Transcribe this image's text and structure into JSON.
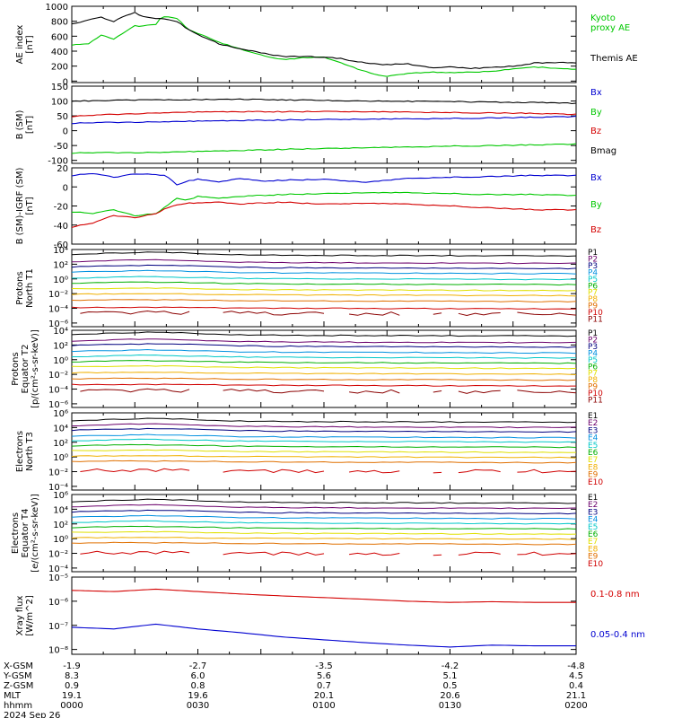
{
  "colors": {
    "black": "#000000",
    "red": "#d40000",
    "blue": "#0000d0",
    "green": "#00c800",
    "band": [
      "#000000",
      "#6b006b",
      "#00007f",
      "#0090e0",
      "#00c8c8",
      "#00b000",
      "#e0e000",
      "#f0b000",
      "#e07000",
      "#d00000",
      "#8b0000"
    ]
  },
  "chart_data": [
    {
      "type": "line",
      "panel": "ae",
      "ylabel": [
        "AE index",
        "[nT]"
      ],
      "ylim": [
        -20,
        1000
      ],
      "yticks": [
        {
          "v": 1000,
          "t": "1000"
        },
        {
          "v": 800,
          "t": "800"
        },
        {
          "v": 600,
          "t": "600"
        },
        {
          "v": 400,
          "t": "400"
        },
        {
          "v": 200,
          "t": "200"
        },
        {
          "v": 0,
          "t": "0"
        }
      ],
      "x": [
        0,
        8,
        14,
        20,
        25,
        30,
        33,
        40,
        43,
        50,
        55,
        60,
        70,
        80,
        90,
        100,
        110,
        120,
        128,
        135,
        145,
        150,
        160,
        170,
        180,
        190,
        200,
        210,
        220,
        230,
        240
      ],
      "series": [
        {
          "name": "Kyoto proxy AE",
          "color": "green",
          "values": [
            480,
            500,
            620,
            560,
            650,
            740,
            730,
            760,
            870,
            840,
            700,
            640,
            520,
            430,
            350,
            290,
            310,
            320,
            250,
            170,
            90,
            60,
            100,
            120,
            110,
            120,
            130,
            160,
            190,
            170,
            160
          ]
        },
        {
          "name": "Themis AE",
          "color": "black",
          "values": [
            760,
            820,
            850,
            800,
            870,
            920,
            860,
            840,
            830,
            800,
            700,
            620,
            500,
            430,
            380,
            330,
            330,
            320,
            300,
            260,
            230,
            220,
            230,
            180,
            190,
            170,
            180,
            200,
            240,
            250,
            240
          ]
        }
      ]
    },
    {
      "type": "line",
      "panel": "b_sm",
      "ylabel": [
        "B (SM)",
        "[nT]"
      ],
      "ylim": [
        -110,
        150
      ],
      "yticks": [
        {
          "v": 150,
          "t": "150"
        },
        {
          "v": 100,
          "t": "100"
        },
        {
          "v": 50,
          "t": "50"
        },
        {
          "v": 0,
          "t": "0"
        },
        {
          "v": -50,
          "t": "-50"
        },
        {
          "v": -100,
          "t": "-100"
        }
      ],
      "x": [
        0,
        20,
        40,
        60,
        80,
        100,
        120,
        140,
        160,
        180,
        200,
        220,
        240
      ],
      "series": [
        {
          "name": "Bx",
          "color": "blue",
          "values": [
            25,
            28,
            30,
            32,
            34,
            36,
            38,
            39,
            40,
            41,
            43,
            45,
            48
          ]
        },
        {
          "name": "By",
          "color": "green",
          "values": [
            -75,
            -74,
            -73,
            -70,
            -67,
            -63,
            -60,
            -57,
            -55,
            -52,
            -50,
            -48,
            -45
          ]
        },
        {
          "name": "Bz",
          "color": "red",
          "values": [
            48,
            55,
            60,
            63,
            64,
            64,
            65,
            64,
            63,
            61,
            60,
            58,
            55
          ]
        },
        {
          "name": "Bmag",
          "color": "black",
          "values": [
            100,
            102,
            104,
            105,
            106,
            104,
            102,
            100,
            99,
            98,
            96,
            95,
            92
          ]
        }
      ]
    },
    {
      "type": "line",
      "panel": "b_igrf",
      "ylabel": [
        "B (SM)-IGRF (SM)",
        "[nT]"
      ],
      "ylim": [
        -60,
        20
      ],
      "yticks": [
        {
          "v": 20,
          "t": "20"
        },
        {
          "v": 0,
          "t": "0"
        },
        {
          "v": -20,
          "t": "-20"
        },
        {
          "v": -40,
          "t": "-40"
        },
        {
          "v": -60,
          "t": "-60"
        }
      ],
      "x": [
        0,
        10,
        20,
        30,
        40,
        45,
        50,
        55,
        60,
        70,
        80,
        90,
        100,
        120,
        140,
        160,
        180,
        200,
        220,
        240
      ],
      "series": [
        {
          "name": "Bx",
          "color": "blue",
          "values": [
            12,
            14,
            10,
            14,
            13,
            12,
            2,
            6,
            8,
            5,
            9,
            6,
            7,
            8,
            5,
            9,
            10,
            11,
            12,
            12
          ]
        },
        {
          "name": "By",
          "color": "green",
          "values": [
            -26,
            -28,
            -24,
            -30,
            -28,
            -20,
            -12,
            -14,
            -10,
            -12,
            -10,
            -9,
            -8,
            -7,
            -6,
            -6,
            -7,
            -8,
            -8,
            -9
          ]
        },
        {
          "name": "Bz",
          "color": "red",
          "values": [
            -42,
            -38,
            -30,
            -32,
            -28,
            -22,
            -19,
            -17,
            -17,
            -16,
            -18,
            -17,
            -16,
            -18,
            -17,
            -18,
            -20,
            -22,
            -24,
            -24
          ]
        }
      ]
    },
    {
      "type": "line",
      "panel": "protons_t1",
      "logscale": true,
      "ylabel": [
        "Protons",
        "North T1"
      ],
      "ylim": [
        -6.5,
        4
      ],
      "yticks": [
        {
          "v": 4,
          "t": "10⁴"
        },
        {
          "v": 2,
          "t": "10²"
        },
        {
          "v": 0,
          "t": "10⁰"
        },
        {
          "v": -2,
          "t": "10⁻²"
        },
        {
          "v": -4,
          "t": "10⁻⁴"
        },
        {
          "v": -6,
          "t": "10⁻⁶"
        }
      ],
      "series": [
        {
          "name": "P1",
          "level": 3.3
        },
        {
          "name": "P2",
          "level": 2.3
        },
        {
          "name": "P3",
          "level": 1.6
        },
        {
          "name": "P4",
          "level": 0.9
        },
        {
          "name": "P5",
          "level": 0.1
        },
        {
          "name": "P6",
          "level": -0.6
        },
        {
          "name": "P7",
          "level": -1.4
        },
        {
          "name": "P8",
          "level": -2.1
        },
        {
          "name": "P9",
          "level": -2.9
        },
        {
          "name": "P10",
          "level": -3.9
        },
        {
          "name": "P11",
          "level": -4.6
        }
      ]
    },
    {
      "type": "line",
      "panel": "protons_t2",
      "logscale": true,
      "ylabel": [
        "Protons",
        "Equator T2",
        "[p/(cm²-s-sr-keV)]"
      ],
      "ylim": [
        -6.5,
        4
      ],
      "yticks": [
        {
          "v": 4,
          "t": "10⁴"
        },
        {
          "v": 2,
          "t": "10²"
        },
        {
          "v": 0,
          "t": "10⁰"
        },
        {
          "v": -2,
          "t": "10⁻²"
        },
        {
          "v": -4,
          "t": "10⁻⁴"
        },
        {
          "v": -6,
          "t": "10⁻⁶"
        }
      ],
      "series": [
        {
          "name": "P1",
          "level": 3.4
        },
        {
          "name": "P2",
          "level": 2.5
        },
        {
          "name": "P3",
          "level": 1.9
        },
        {
          "name": "P4",
          "level": 1.1
        },
        {
          "name": "P5",
          "level": 0.4
        },
        {
          "name": "P6",
          "level": -0.3
        },
        {
          "name": "P7",
          "level": -1.0
        },
        {
          "name": "P8",
          "level": -1.8
        },
        {
          "name": "P9",
          "level": -2.6
        },
        {
          "name": "P10",
          "level": -3.4
        },
        {
          "name": "P11",
          "level": -4.2
        }
      ]
    },
    {
      "type": "line",
      "panel": "electrons_t3",
      "logscale": true,
      "ylabel": [
        "Electrons",
        "North T3"
      ],
      "ylim": [
        -4.5,
        6
      ],
      "yticks": [
        {
          "v": 6,
          "t": "10⁶"
        },
        {
          "v": 4,
          "t": "10⁴"
        },
        {
          "v": 2,
          "t": "10²"
        },
        {
          "v": 0,
          "t": "10⁰"
        },
        {
          "v": -2,
          "t": "10⁻²"
        },
        {
          "v": -4,
          "t": "10⁻⁴"
        }
      ],
      "series": [
        {
          "name": "E1",
          "level": 4.9
        },
        {
          "name": "E2",
          "level": 4.2
        },
        {
          "name": "E3",
          "level": 3.6
        },
        {
          "name": "E4",
          "level": 2.8
        },
        {
          "name": "E5",
          "level": 2.2
        },
        {
          "name": "E6",
          "level": 1.5
        },
        {
          "name": "E7",
          "level": 0.8
        },
        {
          "name": "E8",
          "level": 0.1
        },
        {
          "name": "E9",
          "level": -0.6
        },
        {
          "name": "E10",
          "level": -1.8
        }
      ]
    },
    {
      "type": "line",
      "panel": "electrons_t4",
      "logscale": true,
      "ylabel": [
        "Electrons",
        "Equator T4",
        "[e/(cm²-s-sr-keV)]"
      ],
      "ylim": [
        -4.5,
        6
      ],
      "yticks": [
        {
          "v": 6,
          "t": "10⁶"
        },
        {
          "v": 4,
          "t": "10⁴"
        },
        {
          "v": 2,
          "t": "10²"
        },
        {
          "v": 0,
          "t": "10⁰"
        },
        {
          "v": -2,
          "t": "10⁻²"
        },
        {
          "v": -4,
          "t": "10⁻⁴"
        }
      ],
      "series": [
        {
          "name": "E1",
          "level": 5.0
        },
        {
          "name": "E2",
          "level": 4.3
        },
        {
          "name": "E3",
          "level": 3.6
        },
        {
          "name": "E4",
          "level": 2.9
        },
        {
          "name": "E5",
          "level": 2.2
        },
        {
          "name": "E6",
          "level": 1.5
        },
        {
          "name": "E7",
          "level": 0.8
        },
        {
          "name": "E8",
          "level": 0.1
        },
        {
          "name": "E9",
          "level": -0.6
        },
        {
          "name": "E10",
          "level": -1.9
        }
      ]
    },
    {
      "type": "line",
      "panel": "xray",
      "logscale": true,
      "ylabel": [
        "Xray flux",
        "[W/m^2]"
      ],
      "ylim": [
        -8.2,
        -5
      ],
      "yticks": [
        {
          "v": -5,
          "t": "10⁻⁵"
        },
        {
          "v": -6,
          "t": "10⁻⁶"
        },
        {
          "v": -7,
          "t": "10⁻⁷"
        },
        {
          "v": -8,
          "t": "10⁻⁸"
        }
      ],
      "x": [
        0,
        20,
        40,
        60,
        80,
        100,
        120,
        140,
        160,
        180,
        200,
        220,
        240
      ],
      "series": [
        {
          "name": "0.1-0.8 nm",
          "color": "red",
          "values": [
            -5.55,
            -5.6,
            -5.5,
            -5.6,
            -5.7,
            -5.78,
            -5.85,
            -5.92,
            -6.0,
            -6.05,
            -6.02,
            -6.05,
            -6.05
          ]
        },
        {
          "name": "0.05-0.4 nm",
          "color": "blue",
          "values": [
            -7.08,
            -7.15,
            -6.95,
            -7.15,
            -7.3,
            -7.48,
            -7.6,
            -7.72,
            -7.82,
            -7.9,
            -7.82,
            -7.85,
            -7.85
          ]
        }
      ]
    }
  ],
  "x_axis": {
    "xlim": [
      0,
      240
    ],
    "rows": [
      {
        "label": "X-GSM",
        "values": [
          "-1.9",
          "-2.7",
          "-3.5",
          "-4.2",
          "-4.8"
        ]
      },
      {
        "label": "Y-GSM",
        "values": [
          "8.3",
          "6.0",
          "5.6",
          "5.1",
          "4.5"
        ]
      },
      {
        "label": "Z-GSM",
        "values": [
          "0.9",
          "0.8",
          "0.7",
          "0.5",
          "0.4"
        ]
      },
      {
        "label": "MLT",
        "values": [
          "19.1",
          "19.6",
          "20.1",
          "20.6",
          "21.1"
        ]
      },
      {
        "label": "hhmm",
        "values": [
          "0000",
          "0030",
          "0100",
          "0130",
          "0200"
        ]
      }
    ],
    "date": "2024 Sep 26"
  },
  "legends": {
    "ae": [
      {
        "text": "Kyoto",
        "color": "green"
      },
      {
        "text": "proxy AE",
        "color": "green"
      },
      {
        "text": "Themis AE",
        "color": "black"
      }
    ],
    "b_sm": [
      {
        "text": "Bx",
        "color": "blue"
      },
      {
        "text": "By",
        "color": "green"
      },
      {
        "text": "Bz",
        "color": "red"
      },
      {
        "text": "Bmag",
        "color": "black"
      }
    ],
    "b_igrf": [
      {
        "text": "Bx",
        "color": "blue"
      },
      {
        "text": "By",
        "color": "green"
      },
      {
        "text": "Bz",
        "color": "red"
      }
    ],
    "xray": [
      {
        "text": "0.1-0.8 nm",
        "color": "red"
      },
      {
        "text": "0.05-0.4 nm",
        "color": "blue"
      }
    ]
  }
}
